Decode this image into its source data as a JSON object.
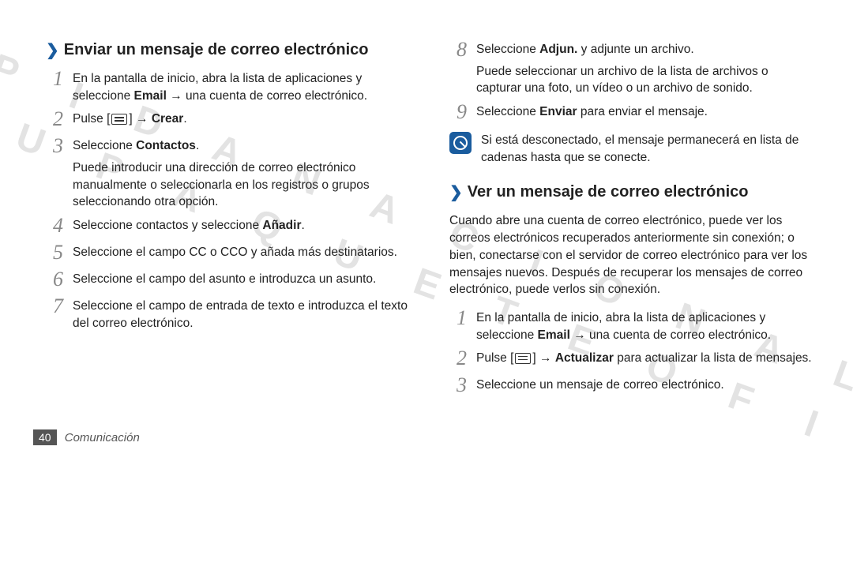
{
  "watermark_lines": [
    "P I D A   N A C I O N A L",
    "C O N   S U   P A Q U E T E   O F I C I A L"
  ],
  "left": {
    "title": "Enviar un mensaje de correo electrónico",
    "steps": [
      {
        "n": "1",
        "html": "En la pantalla de inicio, abra la lista de aplicaciones y seleccione <b>Email</b> → una cuenta de correo electrónico."
      },
      {
        "n": "2",
        "html": "Pulse [<span class='menu-icon'></span>] → <b>Crear</b>."
      },
      {
        "n": "3",
        "html": "Seleccione <b>Contactos</b>.<p>Puede introducir una dirección de correo electrónico manualmente o seleccionarla en los registros o grupos seleccionando otra opción.</p>"
      },
      {
        "n": "4",
        "html": "Seleccione contactos y seleccione <b>Añadir</b>."
      },
      {
        "n": "5",
        "html": "Seleccione el campo CC o CCO y añada más destinatarios."
      },
      {
        "n": "6",
        "html": "Seleccione el campo del asunto e introduzca un asunto."
      },
      {
        "n": "7",
        "html": "Seleccione el campo de entrada de texto e introduzca el texto del correo electrónico."
      }
    ]
  },
  "right": {
    "steps_a": [
      {
        "n": "8",
        "html": "Seleccione <b>Adjun.</b> y adjunte un archivo.<p>Puede seleccionar un archivo de la lista de archivos o capturar una foto, un vídeo o un archivo de sonido.</p>"
      },
      {
        "n": "9",
        "html": "Seleccione <b>Enviar</b> para enviar el mensaje."
      }
    ],
    "note": "Si está desconectado, el mensaje permanecerá en lista de cadenas hasta que se conecte.",
    "title2": "Ver un mensaje de correo electrónico",
    "intro": "Cuando abre una cuenta de correo electrónico, puede ver los correos electrónicos recuperados anteriormente sin conexión; o bien, conectarse con el servidor de correo electrónico para ver los mensajes nuevos. Después de recuperar los mensajes de correo electrónico, puede verlos sin conexión.",
    "steps_b": [
      {
        "n": "1",
        "html": "En la pantalla de inicio, abra la lista de aplicaciones y seleccione <b>Email</b> → una cuenta de correo electrónico."
      },
      {
        "n": "2",
        "html": "Pulse [<span class='menu-icon'></span>] → <b>Actualizar</b> para actualizar la lista de mensajes."
      },
      {
        "n": "3",
        "html": "Seleccione un mensaje de correo electrónico."
      }
    ]
  },
  "footer": {
    "page": "40",
    "section": "Comunicación"
  }
}
